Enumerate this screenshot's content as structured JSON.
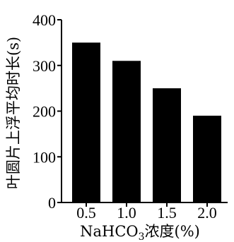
{
  "chart_data": {
    "type": "bar",
    "categories": [
      "0.5",
      "1.0",
      "1.5",
      "2.0"
    ],
    "values": [
      350,
      310,
      250,
      190
    ],
    "ylim": [
      0,
      400
    ],
    "yticks": [
      "0",
      "100",
      "200",
      "300",
      "400"
    ],
    "xlabel_parts": {
      "prefix": "NaHCO",
      "subscript": "3",
      "suffix": "浓度(%)"
    },
    "ylabel": "叶圆片上浮平均时长(s)",
    "bar_color": "#000000",
    "grid": false
  }
}
